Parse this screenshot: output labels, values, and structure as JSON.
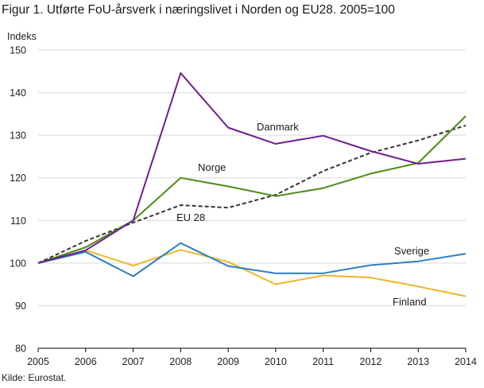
{
  "title": "Figur 1. Utførte FoU-årsverk i næringslivet i Norden og EU28. 2005=100",
  "source": "Kilde: Eurostat.",
  "chart_data": {
    "type": "line",
    "title": "Figur 1. Utførte FoU-årsverk i næringslivet i Norden og EU28. 2005=100",
    "ylabel": "Indeks",
    "xlabel": "",
    "x": [
      "2005",
      "2006",
      "2007",
      "2008",
      "2009",
      "2010",
      "2011",
      "2012",
      "2013",
      "2014"
    ],
    "yticks": [
      "80",
      "90",
      "100",
      "110",
      "120",
      "130",
      "140",
      "150"
    ],
    "ylim": [
      80,
      150
    ],
    "grid": "horizontal",
    "series": [
      {
        "name": "Danmark",
        "color": "#6e1e8c",
        "dash": false,
        "values": [
          100,
          103,
          110,
          144.6,
          131.8,
          128,
          129.9,
          126.3,
          123.3,
          124.5
        ]
      },
      {
        "name": "Norge",
        "color": "#4c8c14",
        "dash": false,
        "values": [
          100,
          103.7,
          110,
          120,
          118,
          115.7,
          117.6,
          121,
          123.5,
          134.5
        ]
      },
      {
        "name": "EU 28",
        "color": "#333333",
        "dash": true,
        "values": [
          100,
          105.2,
          109.5,
          113.6,
          113,
          116,
          121.6,
          125.9,
          128.8,
          132.3
        ]
      },
      {
        "name": "Sverige",
        "color": "#2f7fc1",
        "dash": false,
        "values": [
          100,
          102.6,
          96.9,
          104.7,
          99.3,
          97.6,
          97.6,
          99.5,
          100.4,
          102.2
        ]
      },
      {
        "name": "Finland",
        "color": "#f0b428",
        "dash": false,
        "values": [
          100,
          103,
          99.4,
          103.1,
          100.3,
          95,
          97.1,
          96.6,
          94.5,
          92.2
        ]
      }
    ]
  }
}
